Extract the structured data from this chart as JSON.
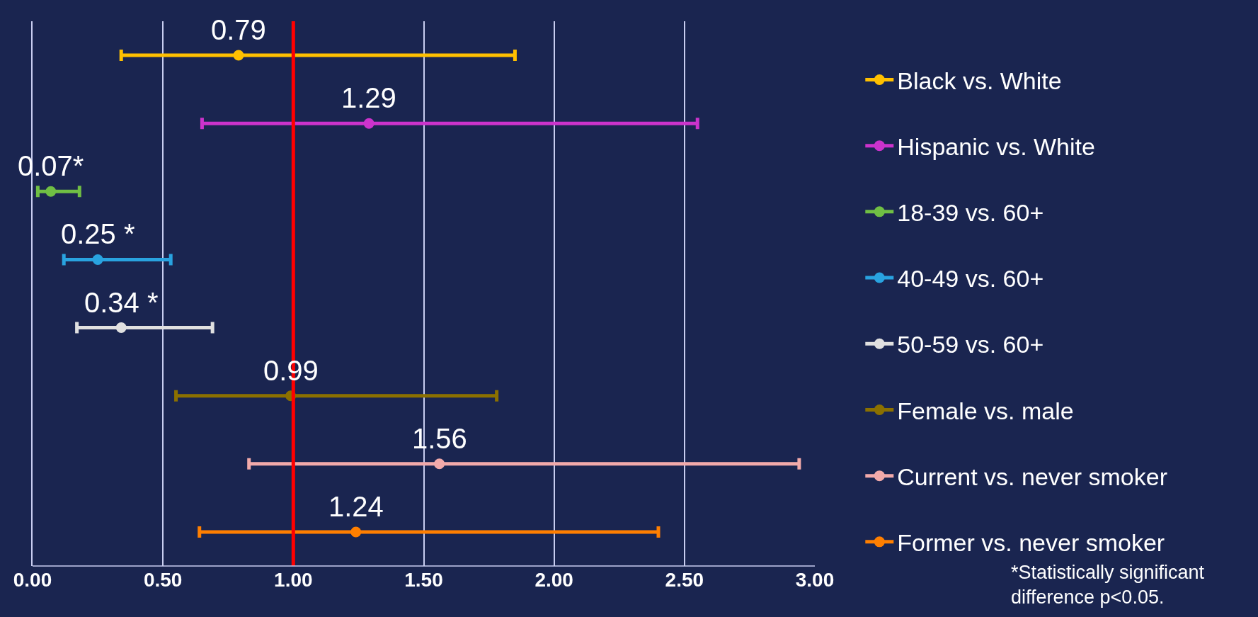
{
  "chart_data": {
    "type": "scatter",
    "orientation": "horizontal",
    "categories": [
      null,
      null,
      null,
      null,
      null,
      null,
      null,
      null
    ],
    "series": [
      {
        "name": "Black vs. White",
        "color": "#ffc000",
        "values": [
          0.79,
          null,
          null,
          null,
          null,
          null,
          null,
          null
        ],
        "errors": [
          [
            0.34,
            1.85
          ],
          null,
          null,
          null,
          null,
          null,
          null,
          null
        ],
        "value_labels": [
          "0.79",
          null,
          null,
          null,
          null,
          null,
          null,
          null
        ]
      },
      {
        "name": "Hispanic vs. White",
        "color": "#cc33cc",
        "values": [
          null,
          1.29,
          null,
          null,
          null,
          null,
          null,
          null
        ],
        "errors": [
          null,
          [
            0.65,
            2.55
          ],
          null,
          null,
          null,
          null,
          null,
          null
        ],
        "value_labels": [
          null,
          "1.29",
          null,
          null,
          null,
          null,
          null,
          null
        ]
      },
      {
        "name": "18-39 vs. 60+",
        "color": "#70bf44",
        "values": [
          null,
          null,
          0.07,
          null,
          null,
          null,
          null,
          null
        ],
        "errors": [
          null,
          null,
          [
            0.02,
            0.18
          ],
          null,
          null,
          null,
          null,
          null
        ],
        "value_labels": [
          null,
          null,
          "0.07*",
          null,
          null,
          null,
          null,
          null
        ]
      },
      {
        "name": "40-49 vs. 60+",
        "color": "#29a3e0",
        "values": [
          null,
          null,
          null,
          0.25,
          null,
          null,
          null,
          null
        ],
        "errors": [
          null,
          null,
          null,
          [
            0.12,
            0.53
          ],
          null,
          null,
          null,
          null
        ],
        "value_labels": [
          null,
          null,
          null,
          "0.25 *",
          null,
          null,
          null,
          null
        ]
      },
      {
        "name": "50-59 vs. 60+",
        "color": "#e0e0e0",
        "values": [
          null,
          null,
          null,
          null,
          0.34,
          null,
          null,
          null
        ],
        "errors": [
          null,
          null,
          null,
          null,
          [
            0.17,
            0.69
          ],
          null,
          null,
          null
        ],
        "value_labels": [
          null,
          null,
          null,
          null,
          "0.34 *",
          null,
          null,
          null
        ]
      },
      {
        "name": "Female vs. male",
        "color": "#8b7000",
        "values": [
          null,
          null,
          null,
          null,
          null,
          0.99,
          null,
          null
        ],
        "errors": [
          null,
          null,
          null,
          null,
          null,
          [
            0.55,
            1.78
          ],
          null,
          null
        ],
        "value_labels": [
          null,
          null,
          null,
          null,
          null,
          "0.99",
          null,
          null
        ]
      },
      {
        "name": "Current vs. never smoker",
        "color": "#f2aaaa",
        "values": [
          null,
          null,
          null,
          null,
          null,
          null,
          1.56,
          null
        ],
        "errors": [
          null,
          null,
          null,
          null,
          null,
          null,
          [
            0.83,
            2.94
          ],
          null
        ],
        "value_labels": [
          null,
          null,
          null,
          null,
          null,
          null,
          "1.56",
          null
        ]
      },
      {
        "name": "Former vs. never smoker",
        "color": "#ff7f00",
        "values": [
          null,
          null,
          null,
          null,
          null,
          null,
          null,
          1.24
        ],
        "errors": [
          null,
          null,
          null,
          null,
          null,
          null,
          null,
          [
            0.64,
            2.4
          ]
        ],
        "value_labels": [
          null,
          null,
          null,
          null,
          null,
          null,
          null,
          "1.24"
        ]
      }
    ],
    "xlim": [
      0,
      3
    ],
    "xticks": [
      {
        "value": 0,
        "label": "0.00"
      },
      {
        "value": 0.5,
        "label": "0.50"
      },
      {
        "value": 1,
        "label": "1.00"
      },
      {
        "value": 1.5,
        "label": "1.50"
      },
      {
        "value": 2,
        "label": "2.00"
      },
      {
        "value": 2.5,
        "label": "2.50"
      },
      {
        "value": 3,
        "label": "3.00"
      }
    ],
    "ref_lines": [
      {
        "axis": "x",
        "value": 1,
        "color": "#ff0000"
      }
    ],
    "grid": "x",
    "legend": "right",
    "marker": "circle",
    "line_style": "solid",
    "tick_labels": "x",
    "annotations": [
      "*Statistically significant difference p<0.05."
    ]
  }
}
